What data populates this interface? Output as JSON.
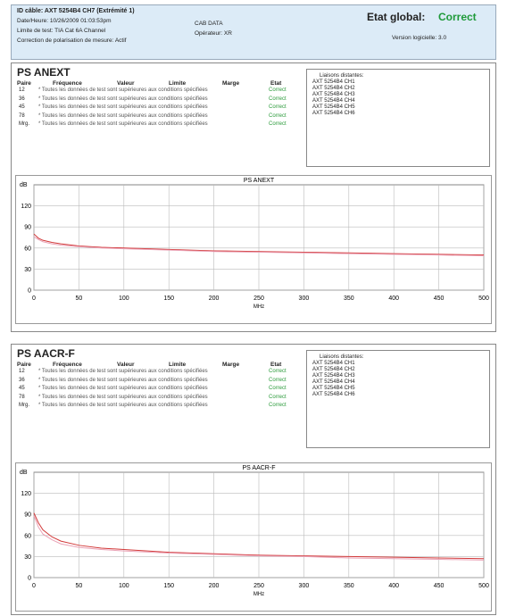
{
  "header": {
    "lines": [
      "ID câble: AXT 5254B4 CH7 (Extrémité 1)",
      "Date/Heure: 10/26/2009 01:03:53pm",
      "Limite de test: TIA Cat 6A Channel",
      "Correction de polarisation de mesure: Actif"
    ],
    "middle": [
      "CAB DATA",
      "Opérateur: XR"
    ],
    "status_label": "Etat global:",
    "status": "Correct",
    "version": "Version logicielle: 3.0"
  },
  "sections": [
    {
      "title": "PS ANEXT",
      "table": {
        "columns": [
          "Paire",
          "Fréquence",
          "Valeur",
          "Limite",
          "Marge",
          "Etat"
        ],
        "rows": [
          [
            "12",
            "* Toutes les données de test sont supérieures aux conditions spécifiées",
            "Correct"
          ],
          [
            "36",
            "* Toutes les données de test sont supérieures aux conditions spécifiées",
            "Correct"
          ],
          [
            "45",
            "* Toutes les données de test sont supérieures aux conditions spécifiées",
            "Correct"
          ],
          [
            "78",
            "* Toutes les données de test sont supérieures aux conditions spécifiées",
            "Correct"
          ],
          [
            "Mrg.",
            "* Toutes les données de test sont supérieures aux conditions spécifiées",
            "Correct"
          ]
        ]
      },
      "legend": {
        "title": "Liaisons distantes:",
        "items": [
          "AXT 5254B4 CH1",
          "AXT 5254B4 CH2",
          "AXT 5254B4 CH3",
          "AXT 5254B4 CH4",
          "AXT 5254B4 CH5",
          "AXT 5254B4 CH6"
        ]
      },
      "chart_data": {
        "type": "line",
        "title": "PS ANEXT",
        "x_label": "MHz",
        "y_label": "dB",
        "x": [
          0,
          5,
          10,
          20,
          30,
          50,
          75,
          100,
          150,
          200,
          250,
          300,
          350,
          400,
          450,
          500
        ],
        "series": [
          {
            "color": "#d23a3a",
            "values": [
              80,
              74,
              71,
              68,
              66,
              63,
              61,
              60,
              58,
              56,
              55,
              54,
              53,
              52,
              51,
              50
            ]
          },
          {
            "color": "#eaa2b6",
            "values": [
              76,
              72,
              69,
              66,
              64,
              62,
              60,
              59,
              57,
              55,
              54,
              53,
              52,
              51,
              50,
              49
            ]
          }
        ],
        "xlim": [
          0,
          500
        ],
        "xticks": [
          0,
          50,
          100,
          150,
          200,
          250,
          300,
          350,
          400,
          450,
          500
        ],
        "ylim": [
          0,
          150
        ],
        "yticks": [
          0,
          30,
          60,
          90,
          120
        ],
        "grid": true
      }
    },
    {
      "title": "PS AACR-F",
      "table": {
        "columns": [
          "Paire",
          "Fréquence",
          "Valeur",
          "Limite",
          "Marge",
          "Etat"
        ],
        "rows": [
          [
            "12",
            "* Toutes les données de test sont supérieures aux conditions spécifiées",
            "Correct"
          ],
          [
            "36",
            "* Toutes les données de test sont supérieures aux conditions spécifiées",
            "Correct"
          ],
          [
            "45",
            "* Toutes les données de test sont supérieures aux conditions spécifiées",
            "Correct"
          ],
          [
            "78",
            "* Toutes les données de test sont supérieures aux conditions spécifiées",
            "Correct"
          ],
          [
            "Mrg.",
            "* Toutes les données de test sont supérieures aux conditions spécifiées",
            "Correct"
          ]
        ]
      },
      "legend": {
        "title": "Liaisons distantes:",
        "items": [
          "AXT 5254B4 CH1",
          "AXT 5254B4 CH2",
          "AXT 5254B4 CH3",
          "AXT 5254B4 CH4",
          "AXT 5254B4 CH5",
          "AXT 5254B4 CH6"
        ]
      },
      "chart_data": {
        "type": "line",
        "title": "PS AACR-F",
        "x_label": "MHz",
        "y_label": "dB",
        "x": [
          0,
          5,
          10,
          20,
          30,
          50,
          75,
          100,
          150,
          200,
          250,
          300,
          350,
          400,
          450,
          500
        ],
        "series": [
          {
            "color": "#d23a3a",
            "values": [
              92,
              78,
              68,
              58,
              52,
              46,
              42,
              40,
              36,
              34,
              32,
              31,
              30,
              29,
              28,
              27
            ]
          },
          {
            "color": "#eaa2b6",
            "values": [
              88,
              72,
              62,
              54,
              48,
              43,
              40,
              38,
              35,
              33,
              31,
              30,
              28,
              27,
              26,
              25
            ]
          }
        ],
        "xlim": [
          0,
          500
        ],
        "xticks": [
          0,
          50,
          100,
          150,
          200,
          250,
          300,
          350,
          400,
          450,
          500
        ],
        "ylim": [
          0,
          150
        ],
        "yticks": [
          0,
          30,
          60,
          90,
          120
        ],
        "grid": true
      }
    }
  ]
}
